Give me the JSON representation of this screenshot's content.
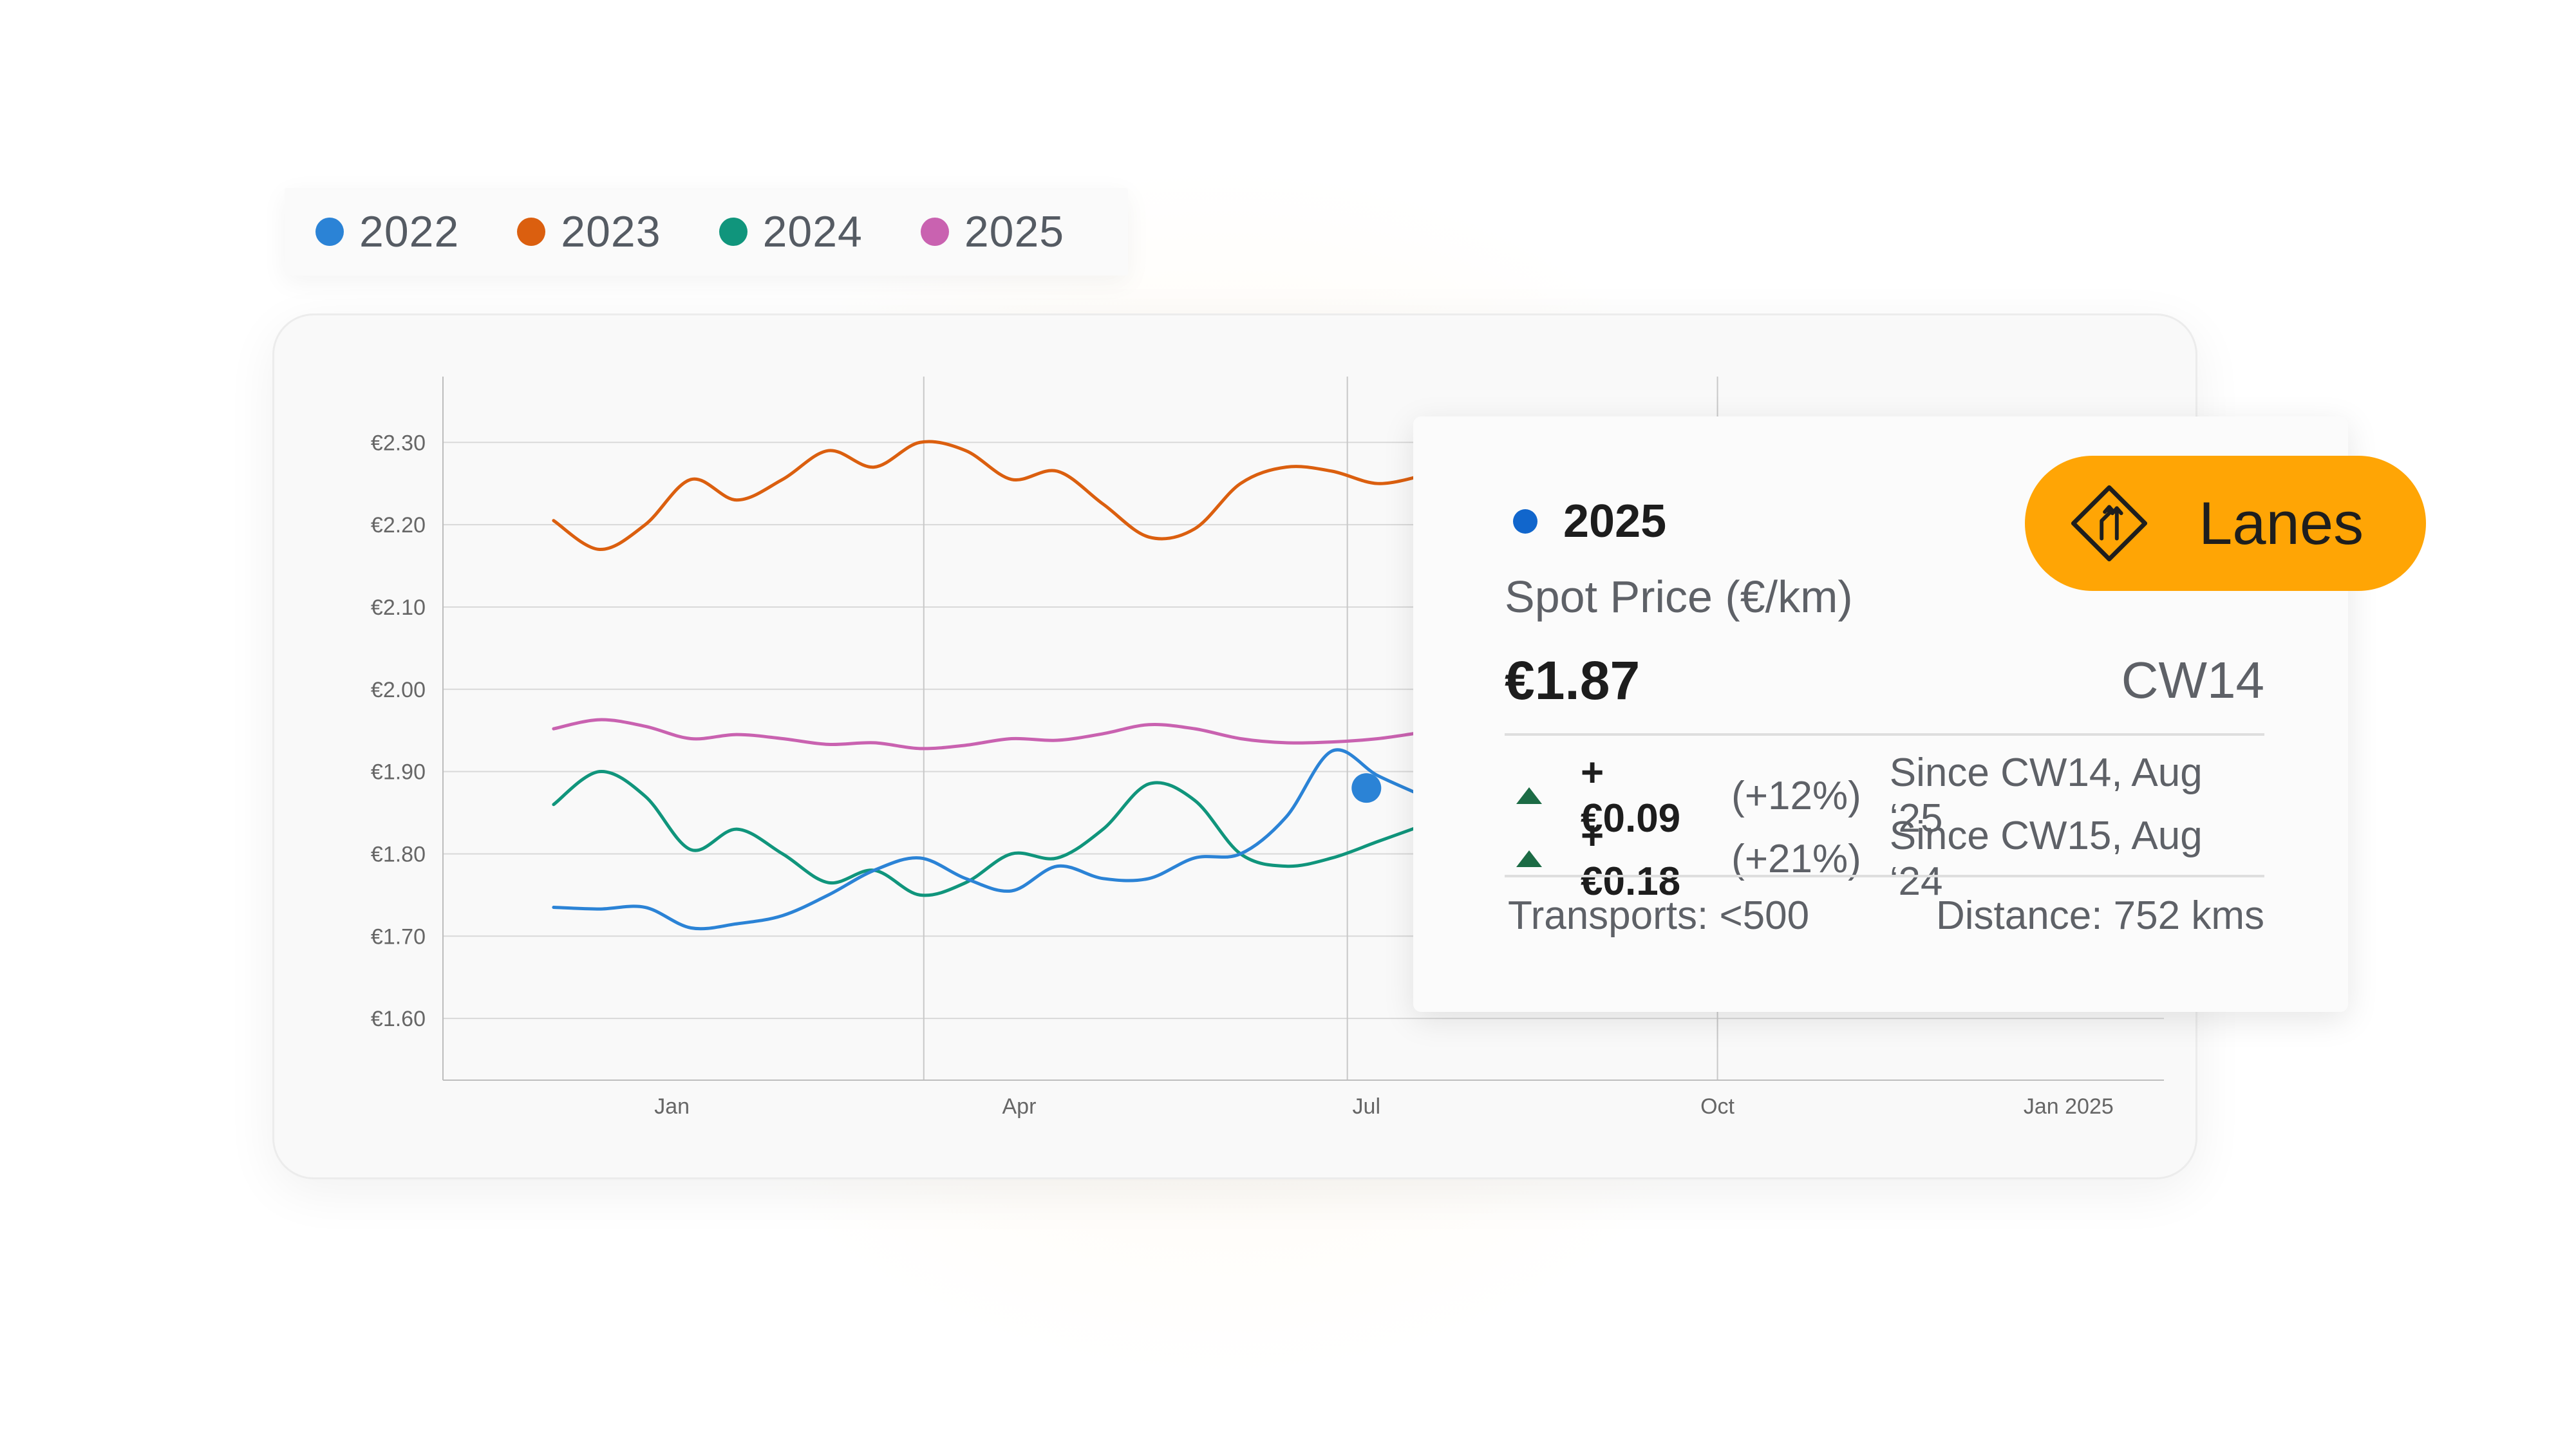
{
  "colors": {
    "2022": "#2b83d6",
    "2023": "#db5f0f",
    "2024": "#10957c",
    "2025": "#c962b0",
    "accent": "#ffa505",
    "up_arrow": "#1c6b45"
  },
  "legend": {
    "items": [
      {
        "label": "2022",
        "color": "#2b83d6"
      },
      {
        "label": "2023",
        "color": "#db5f0f"
      },
      {
        "label": "2024",
        "color": "#10957c"
      },
      {
        "label": "2025",
        "color": "#c962b0"
      }
    ]
  },
  "chart_data": {
    "type": "line",
    "title": "",
    "xlabel": "",
    "ylabel": "",
    "ylim": [
      1.525,
      2.38
    ],
    "yticks": [
      1.6,
      1.7,
      1.8,
      1.9,
      2.0,
      2.1,
      2.2,
      2.3
    ],
    "ytick_labels": [
      "€1.60",
      "€1.70",
      "€1.80",
      "€1.90",
      "€2.00",
      "€2.10",
      "€2.20",
      "€2.30"
    ],
    "xticks": [
      "2024-01-01",
      "2024-04-01",
      "2024-07-01",
      "2024-10-01",
      "2025-01-01"
    ],
    "xtick_labels": [
      "Jan",
      "Apr",
      "Jul",
      "Oct",
      "Jan 2025"
    ],
    "xlim": [
      "2023-11-02",
      "2025-01-26"
    ],
    "vlines": [
      "2024-03-07",
      "2024-06-26",
      "2024-10-01"
    ],
    "grid": true,
    "legend_position": "top-left",
    "highlight": {
      "series": "2022",
      "x": "2024-07-01",
      "y": 1.88
    },
    "series": [
      {
        "name": "2023",
        "color": "#db5f0f",
        "x": [
          "2023-12-01",
          "2023-12-13",
          "2023-12-25",
          "2024-01-06",
          "2024-01-18",
          "2024-01-30",
          "2024-02-11",
          "2024-02-23",
          "2024-03-06",
          "2024-03-18",
          "2024-03-30",
          "2024-04-11",
          "2024-04-23",
          "2024-05-05",
          "2024-05-17",
          "2024-05-29",
          "2024-06-10",
          "2024-06-22",
          "2024-07-04",
          "2024-07-16"
        ],
        "y": [
          2.205,
          2.17,
          2.2,
          2.255,
          2.23,
          2.255,
          2.29,
          2.27,
          2.3,
          2.29,
          2.255,
          2.265,
          2.225,
          2.185,
          2.195,
          2.25,
          2.27,
          2.265,
          2.25,
          2.26
        ]
      },
      {
        "name": "2025",
        "color": "#c962b0",
        "x": [
          "2023-12-01",
          "2023-12-13",
          "2023-12-25",
          "2024-01-06",
          "2024-01-18",
          "2024-01-30",
          "2024-02-11",
          "2024-02-23",
          "2024-03-06",
          "2024-03-18",
          "2024-03-30",
          "2024-04-11",
          "2024-04-23",
          "2024-05-05",
          "2024-05-17",
          "2024-05-29",
          "2024-06-10",
          "2024-06-22",
          "2024-07-04",
          "2024-07-16"
        ],
        "y": [
          1.952,
          1.963,
          1.955,
          1.94,
          1.945,
          1.94,
          1.933,
          1.935,
          1.928,
          1.932,
          1.94,
          1.938,
          1.946,
          1.957,
          1.952,
          1.94,
          1.935,
          1.936,
          1.94,
          1.948
        ]
      },
      {
        "name": "2024",
        "color": "#10957c",
        "x": [
          "2023-12-01",
          "2023-12-13",
          "2023-12-25",
          "2024-01-06",
          "2024-01-18",
          "2024-01-30",
          "2024-02-11",
          "2024-02-23",
          "2024-03-06",
          "2024-03-18",
          "2024-03-30",
          "2024-04-11",
          "2024-04-23",
          "2024-05-05",
          "2024-05-17",
          "2024-05-29",
          "2024-06-10",
          "2024-06-22",
          "2024-07-04",
          "2024-07-16"
        ],
        "y": [
          1.86,
          1.9,
          1.87,
          1.805,
          1.83,
          1.8,
          1.765,
          1.78,
          1.75,
          1.765,
          1.8,
          1.795,
          1.83,
          1.885,
          1.865,
          1.8,
          1.785,
          1.795,
          1.815,
          1.835
        ]
      },
      {
        "name": "2022",
        "color": "#2b83d6",
        "x": [
          "2023-12-01",
          "2023-12-13",
          "2023-12-25",
          "2024-01-06",
          "2024-01-18",
          "2024-01-30",
          "2024-02-11",
          "2024-02-23",
          "2024-03-06",
          "2024-03-18",
          "2024-03-30",
          "2024-04-11",
          "2024-04-23",
          "2024-05-05",
          "2024-05-17",
          "2024-05-29",
          "2024-06-10",
          "2024-06-22",
          "2024-07-04",
          "2024-07-16"
        ],
        "y": [
          1.735,
          1.733,
          1.735,
          1.71,
          1.715,
          1.725,
          1.75,
          1.78,
          1.795,
          1.77,
          1.755,
          1.785,
          1.77,
          1.77,
          1.795,
          1.8,
          1.845,
          1.925,
          1.895,
          1.87
        ]
      }
    ]
  },
  "tooltip": {
    "year": "2025",
    "metric": "Spot Price (€/km)",
    "value": "€1.87",
    "week": "CW14",
    "deltas": [
      {
        "abs": "+€0.09",
        "pct": "(+12%)",
        "since": "Since CW14, Aug ‘25"
      },
      {
        "abs": "+€0.18",
        "pct": "(+21%)",
        "since": "Since CW15, Aug ‘24"
      }
    ],
    "transports": "Transports: <500",
    "distance": "Distance: 752 kms"
  },
  "badge": {
    "label": "Lanes",
    "icon": "lanes-road-icon"
  }
}
